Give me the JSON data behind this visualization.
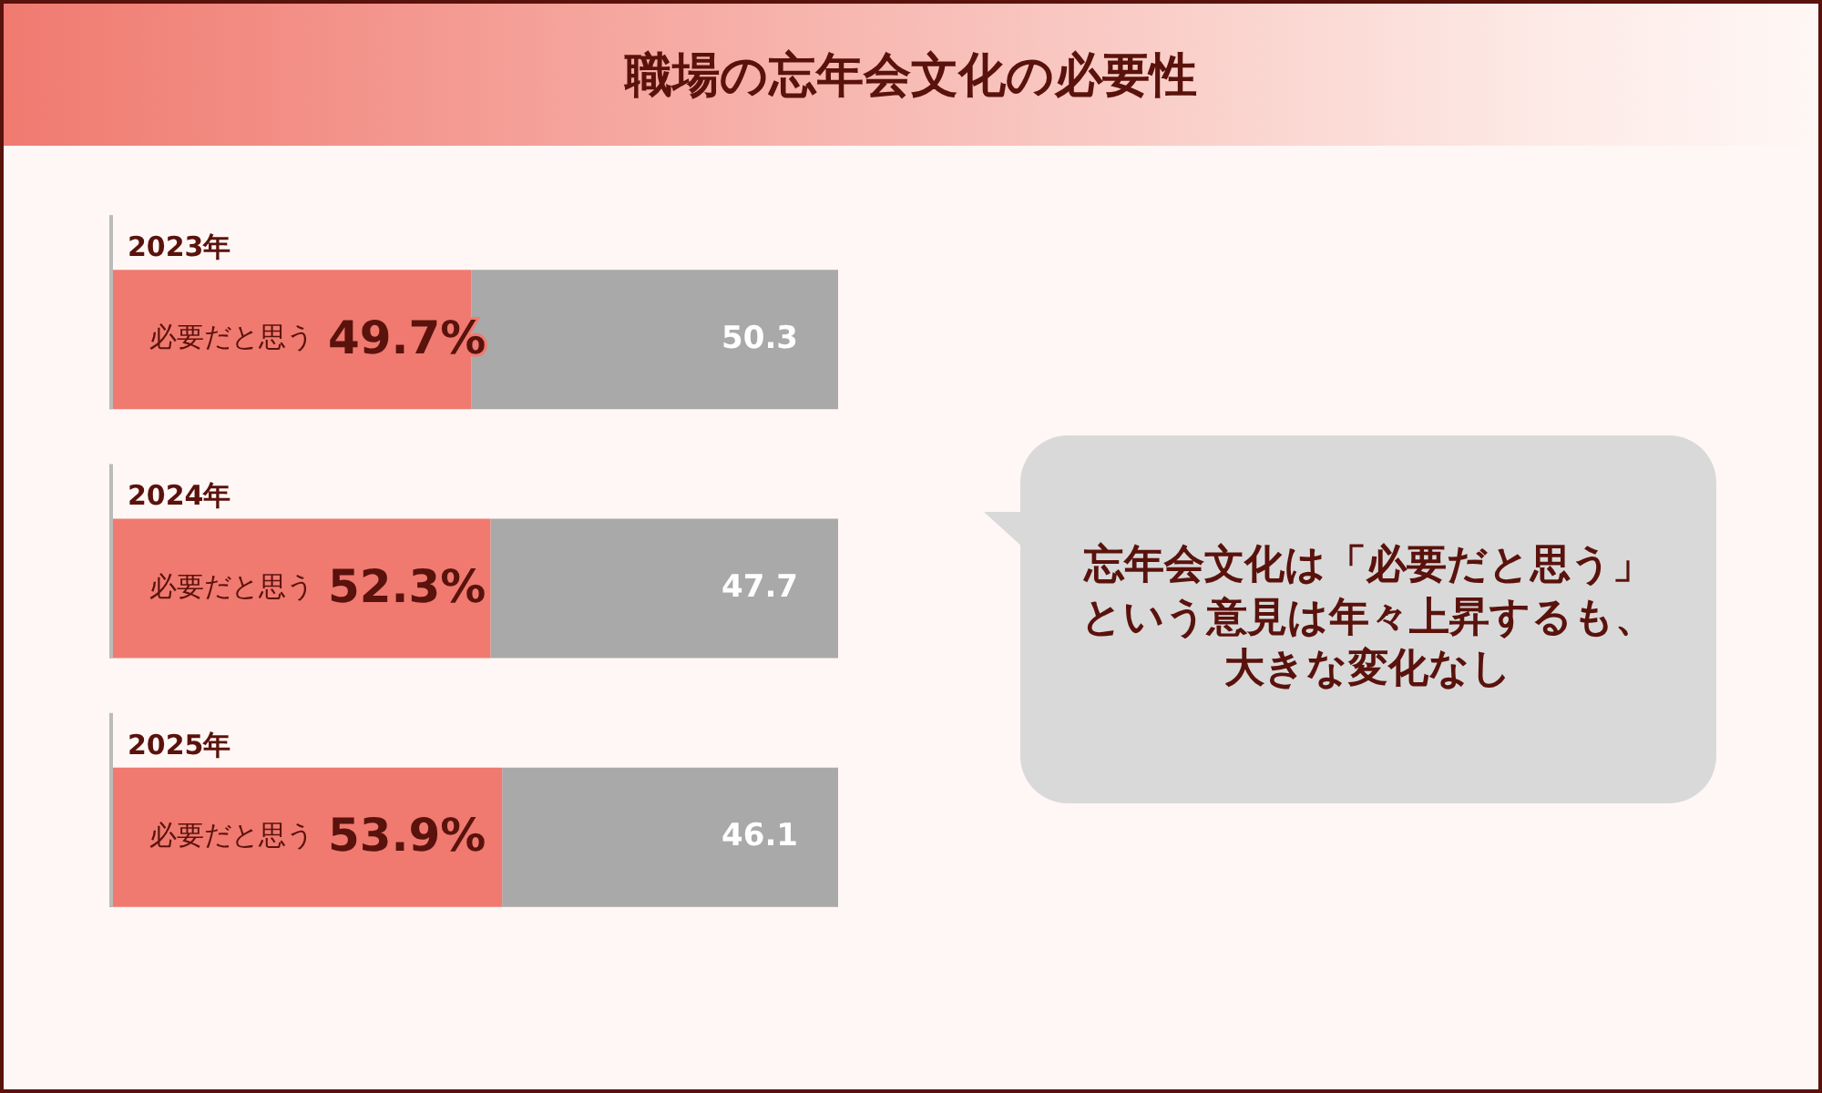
{
  "chart_data": {
    "type": "bar",
    "orientation": "horizontal",
    "stacked": true,
    "title": "職場の忘年会文化の必要性",
    "categories": [
      "2023年",
      "2024年",
      "2025年"
    ],
    "series": [
      {
        "name": "必要だと思う",
        "color": "#f07a70",
        "values": [
          49.7,
          52.3,
          53.9
        ],
        "value_labels": [
          "49.7%",
          "52.3%",
          "53.9%"
        ]
      },
      {
        "color": "#a9a9a9",
        "values": [
          50.3,
          47.7,
          46.1
        ],
        "value_labels": [
          "50.3",
          "47.7",
          "46.1"
        ]
      }
    ],
    "xlim": [
      0,
      100
    ],
    "tick_labels": false,
    "annotations": [
      "忘年会文化は「必要だと思う」という意見は年々上昇するも、大きな変化なし"
    ]
  }
}
